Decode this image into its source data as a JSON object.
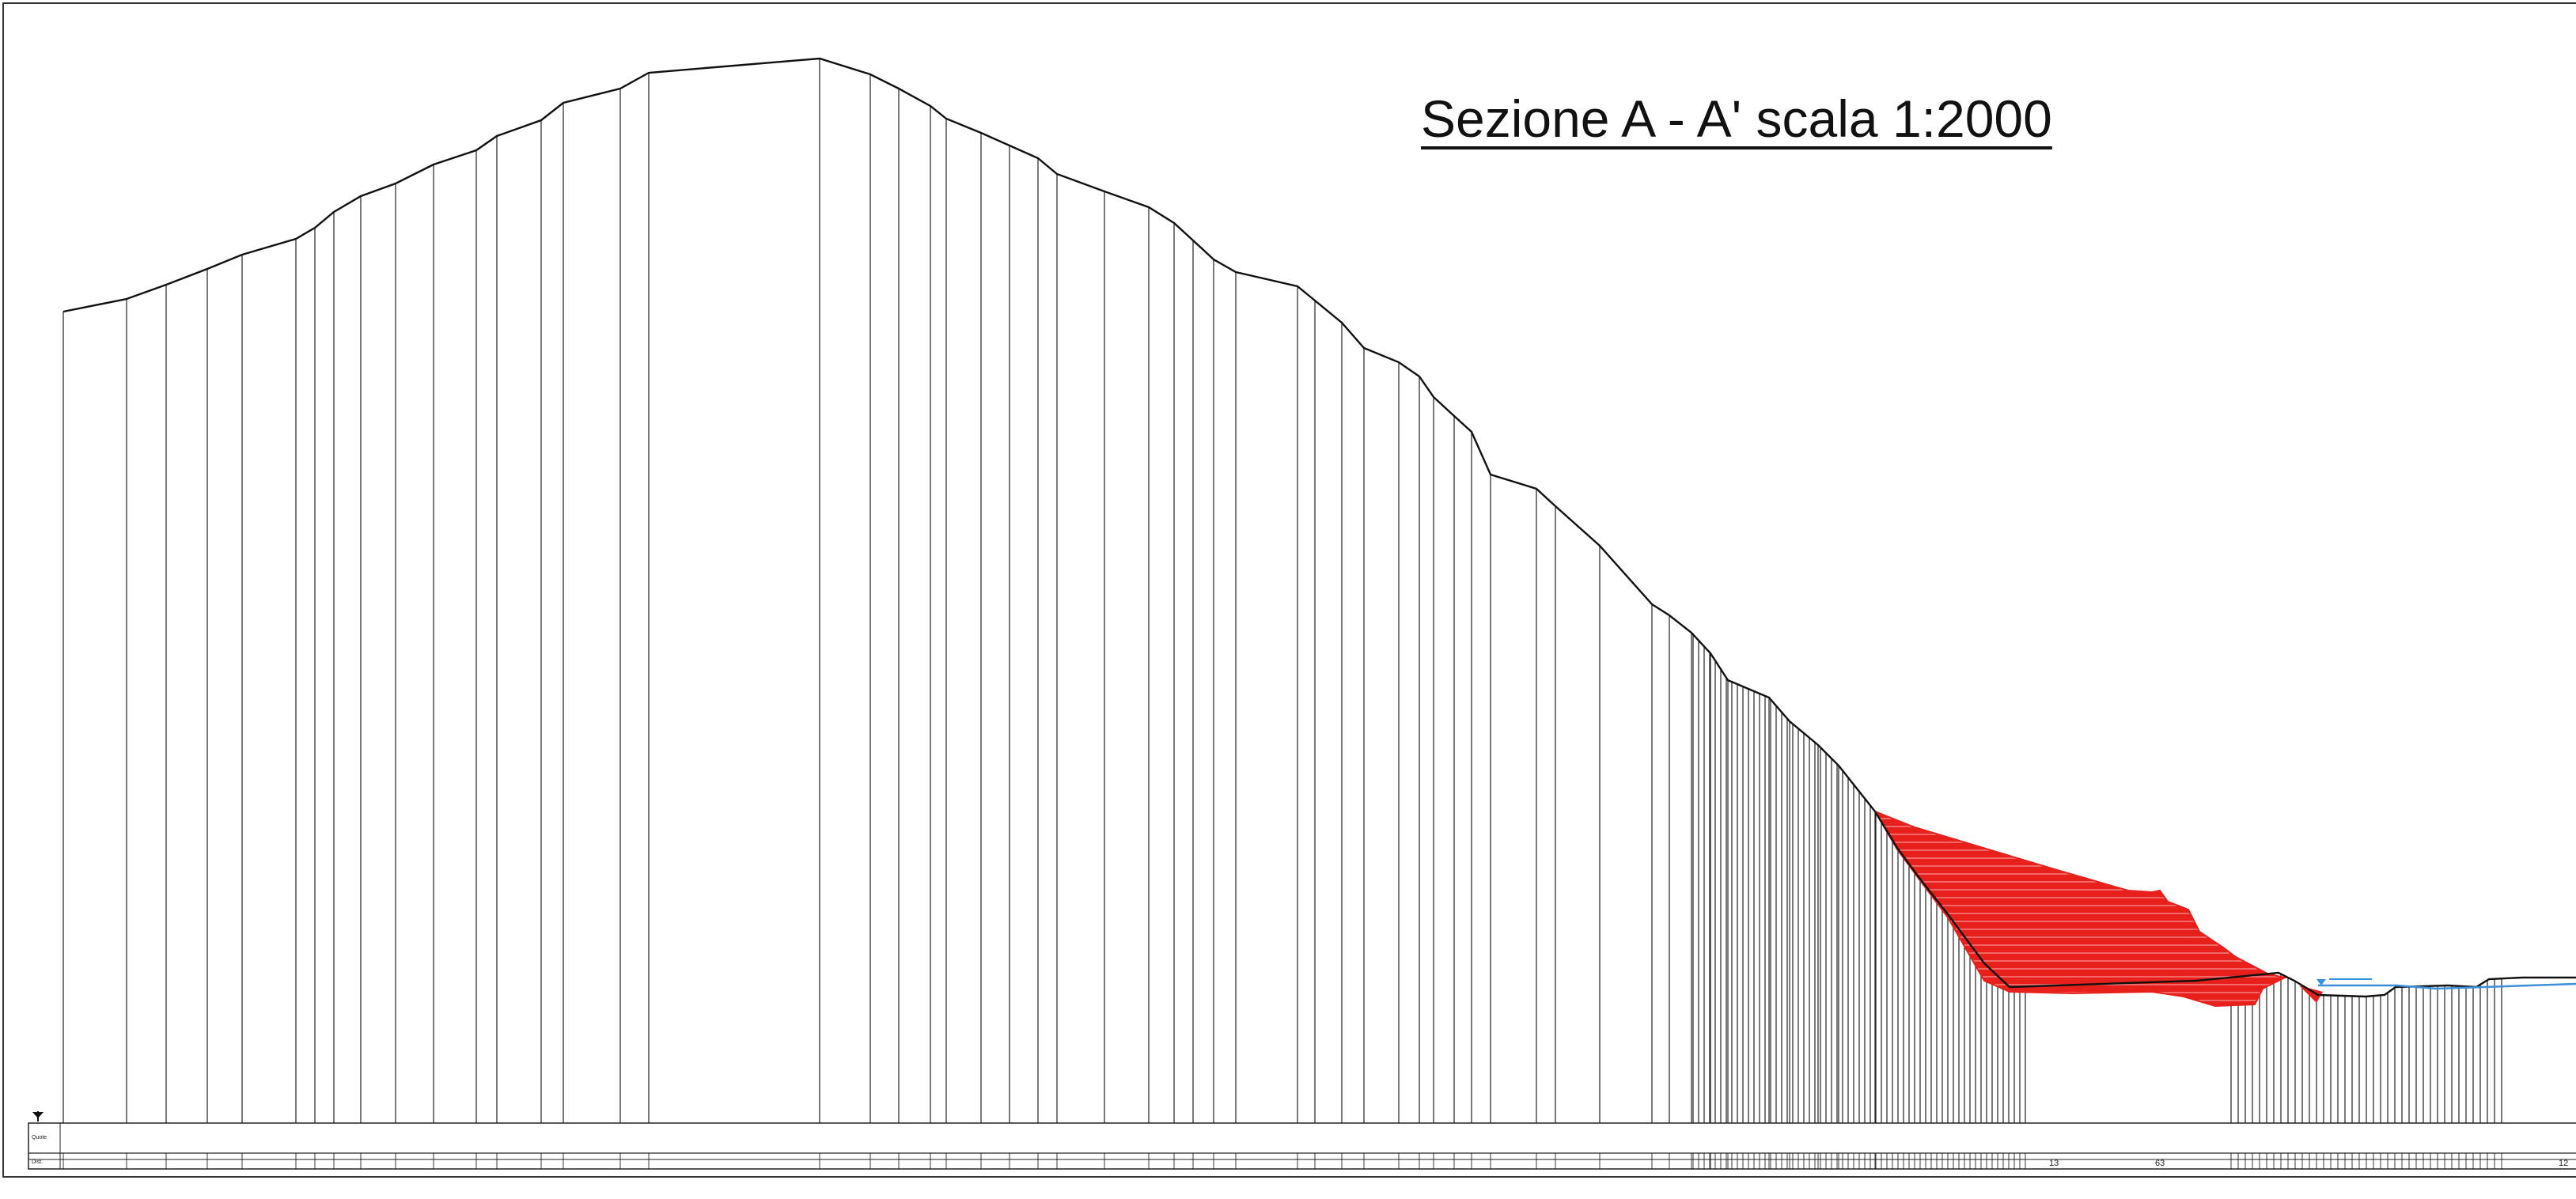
{
  "title": "Sezione A - A' scala 1:2000",
  "colors": {
    "profile": "#111111",
    "landslide_fill": "#e8201c",
    "water": "#3a8fd8",
    "frame": "#333333"
  },
  "band_labels": {
    "row1": "Quote",
    "row2": "Dist."
  },
  "distance_labels": [
    "13",
    "63",
    "12"
  ]
}
